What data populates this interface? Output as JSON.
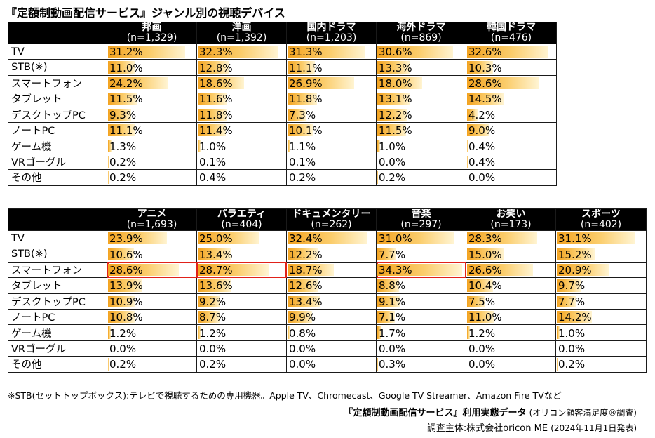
{
  "title": "『定額制動画配信サービス』ジャンル別の視聴デバイス",
  "chart_data": [
    {
      "type": "table",
      "title": "『定額制動画配信サービス』ジャンル別の視聴デバイス",
      "columns": [
        {
          "name": "邦画",
          "n": "(n=1,329)"
        },
        {
          "name": "洋画",
          "n": "(n=1,392)"
        },
        {
          "name": "国内ドラマ",
          "n": "(n=1,203)"
        },
        {
          "name": "海外ドラマ",
          "n": "(n=869)"
        },
        {
          "name": "韓国ドラマ",
          "n": "(n=476)"
        }
      ],
      "rows": [
        "TV",
        "STB(※)",
        "スマートフォン",
        "タブレット",
        "デスクトップPC",
        "ノートPC",
        "ゲーム機",
        "VRゴーグル",
        "その他"
      ],
      "values": [
        [
          31.2,
          32.3,
          31.3,
          30.6,
          32.6
        ],
        [
          11.0,
          12.8,
          11.1,
          13.3,
          10.3
        ],
        [
          24.2,
          18.6,
          26.9,
          18.0,
          28.6
        ],
        [
          11.5,
          11.6,
          11.8,
          13.1,
          14.5
        ],
        [
          9.3,
          11.8,
          7.3,
          12.2,
          4.2
        ],
        [
          11.1,
          11.4,
          10.1,
          11.5,
          9.0
        ],
        [
          1.3,
          1.0,
          1.1,
          1.0,
          0.4
        ],
        [
          0.2,
          0.1,
          0.1,
          0.0,
          0.4
        ],
        [
          0.2,
          0.4,
          0.2,
          0.2,
          0.0
        ]
      ],
      "unit": "%",
      "highlights": []
    },
    {
      "type": "table",
      "columns": [
        {
          "name": "アニメ",
          "n": "(n=1,693)"
        },
        {
          "name": "バラエティ",
          "n": "(n=404)"
        },
        {
          "name": "ドキュメンタリー",
          "n": "(n=262)"
        },
        {
          "name": "音楽",
          "n": "(n=297)"
        },
        {
          "name": "お笑い",
          "n": "(n=173)"
        },
        {
          "name": "スポーツ",
          "n": "(n=402)"
        }
      ],
      "rows": [
        "TV",
        "STB(※)",
        "スマートフォン",
        "タブレット",
        "デスクトップPC",
        "ノートPC",
        "ゲーム機",
        "VRゴーグル",
        "その他"
      ],
      "values": [
        [
          23.9,
          25.0,
          32.4,
          31.0,
          28.3,
          31.1
        ],
        [
          10.6,
          13.4,
          12.2,
          7.7,
          15.0,
          15.2
        ],
        [
          28.6,
          28.7,
          18.7,
          34.3,
          26.6,
          20.9
        ],
        [
          13.9,
          13.6,
          12.6,
          8.8,
          10.4,
          9.7
        ],
        [
          10.9,
          9.2,
          13.4,
          9.1,
          7.5,
          7.7
        ],
        [
          10.8,
          8.7,
          9.9,
          7.1,
          11.0,
          14.2
        ],
        [
          1.2,
          1.2,
          0.8,
          1.7,
          1.2,
          1.0
        ],
        [
          0.0,
          0.0,
          0.0,
          0.0,
          0.0,
          0.0
        ],
        [
          0.2,
          0.2,
          0.0,
          0.3,
          0.0,
          0.2
        ]
      ],
      "unit": "%",
      "highlights": [
        [
          2,
          0
        ],
        [
          2,
          1
        ],
        [
          2,
          3
        ]
      ]
    }
  ],
  "footnote": "※STB(セットトップボックス):テレビで視聴するための専用機器。Apple TV、Chromecast、Google TV Streamer、Amazon Fire TVなど",
  "source": {
    "main": "『定額制動画配信サービス』利用実態データ",
    "paren": "(オリコン顧客満足度®調査)",
    "line2": "調査主体:株式会社oricon ME",
    "date": "(2024年11月1日発表)"
  },
  "colors": {
    "bar": "#f3a320",
    "highlight": "#e0221a",
    "header_bg": "#000000"
  }
}
